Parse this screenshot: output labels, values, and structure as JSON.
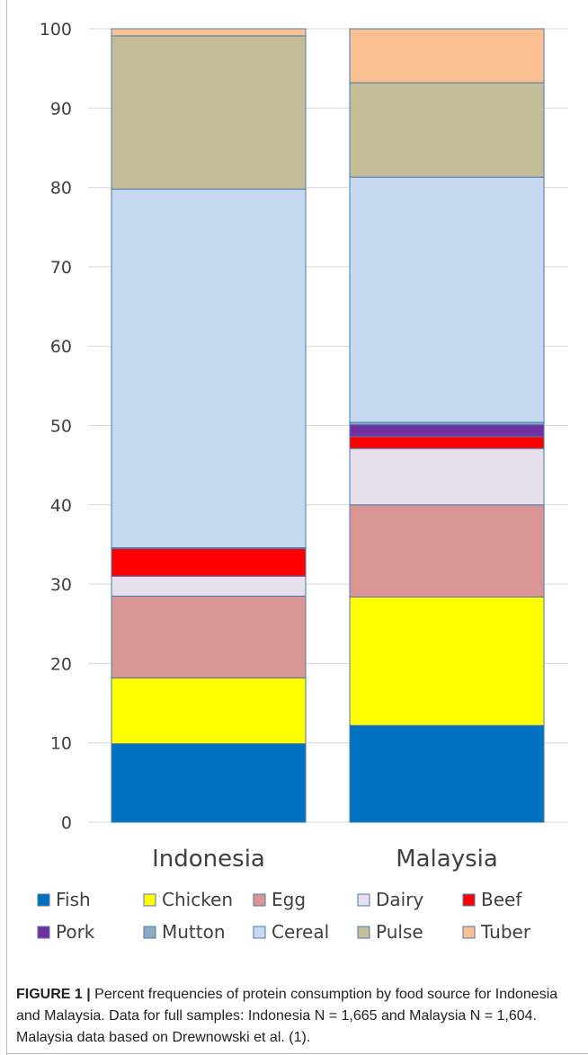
{
  "chart_data": {
    "type": "bar",
    "stacked": true,
    "title": "",
    "xlabel": "",
    "ylabel": "",
    "ylim": [
      0,
      100
    ],
    "yticks": [
      0,
      10,
      20,
      30,
      40,
      50,
      60,
      70,
      80,
      90,
      100
    ],
    "grid": true,
    "legend_position": "bottom",
    "categories": [
      "Indonesia",
      "Malaysia"
    ],
    "series": [
      {
        "name": "Fish",
        "color": "#0070C0",
        "values": [
          9.9,
          12.2
        ]
      },
      {
        "name": "Chicken",
        "color": "#FFFF00",
        "values": [
          8.3,
          16.2
        ]
      },
      {
        "name": "Egg",
        "color": "#D99694",
        "values": [
          10.3,
          11.6
        ]
      },
      {
        "name": "Dairy",
        "color": "#E6E0EC",
        "values": [
          2.5,
          7.1
        ]
      },
      {
        "name": "Beef",
        "color": "#FF0000",
        "values": [
          3.5,
          1.5
        ]
      },
      {
        "name": "Pork",
        "color": "#7030A0",
        "values": [
          0.0,
          1.5
        ]
      },
      {
        "name": "Mutton",
        "color": "#8EA9C1",
        "values": [
          0.1,
          0.3
        ]
      },
      {
        "name": "Cereal",
        "color": "#C6D9F0",
        "values": [
          45.2,
          30.9
        ]
      },
      {
        "name": "Pulse",
        "color": "#C4BD97",
        "values": [
          19.3,
          11.9
        ]
      },
      {
        "name": "Tuber",
        "color": "#FAC090",
        "values": [
          0.9,
          6.8
        ]
      }
    ]
  },
  "caption": {
    "label": "FIGURE 1 |",
    "text": " Percent frequencies of protein consumption by food source for Indonesia and Malaysia. Data for full samples: Indonesia N = 1,665 and Malaysia N = 1,604. Malaysia data based on Drewnowski et al. (1)."
  }
}
